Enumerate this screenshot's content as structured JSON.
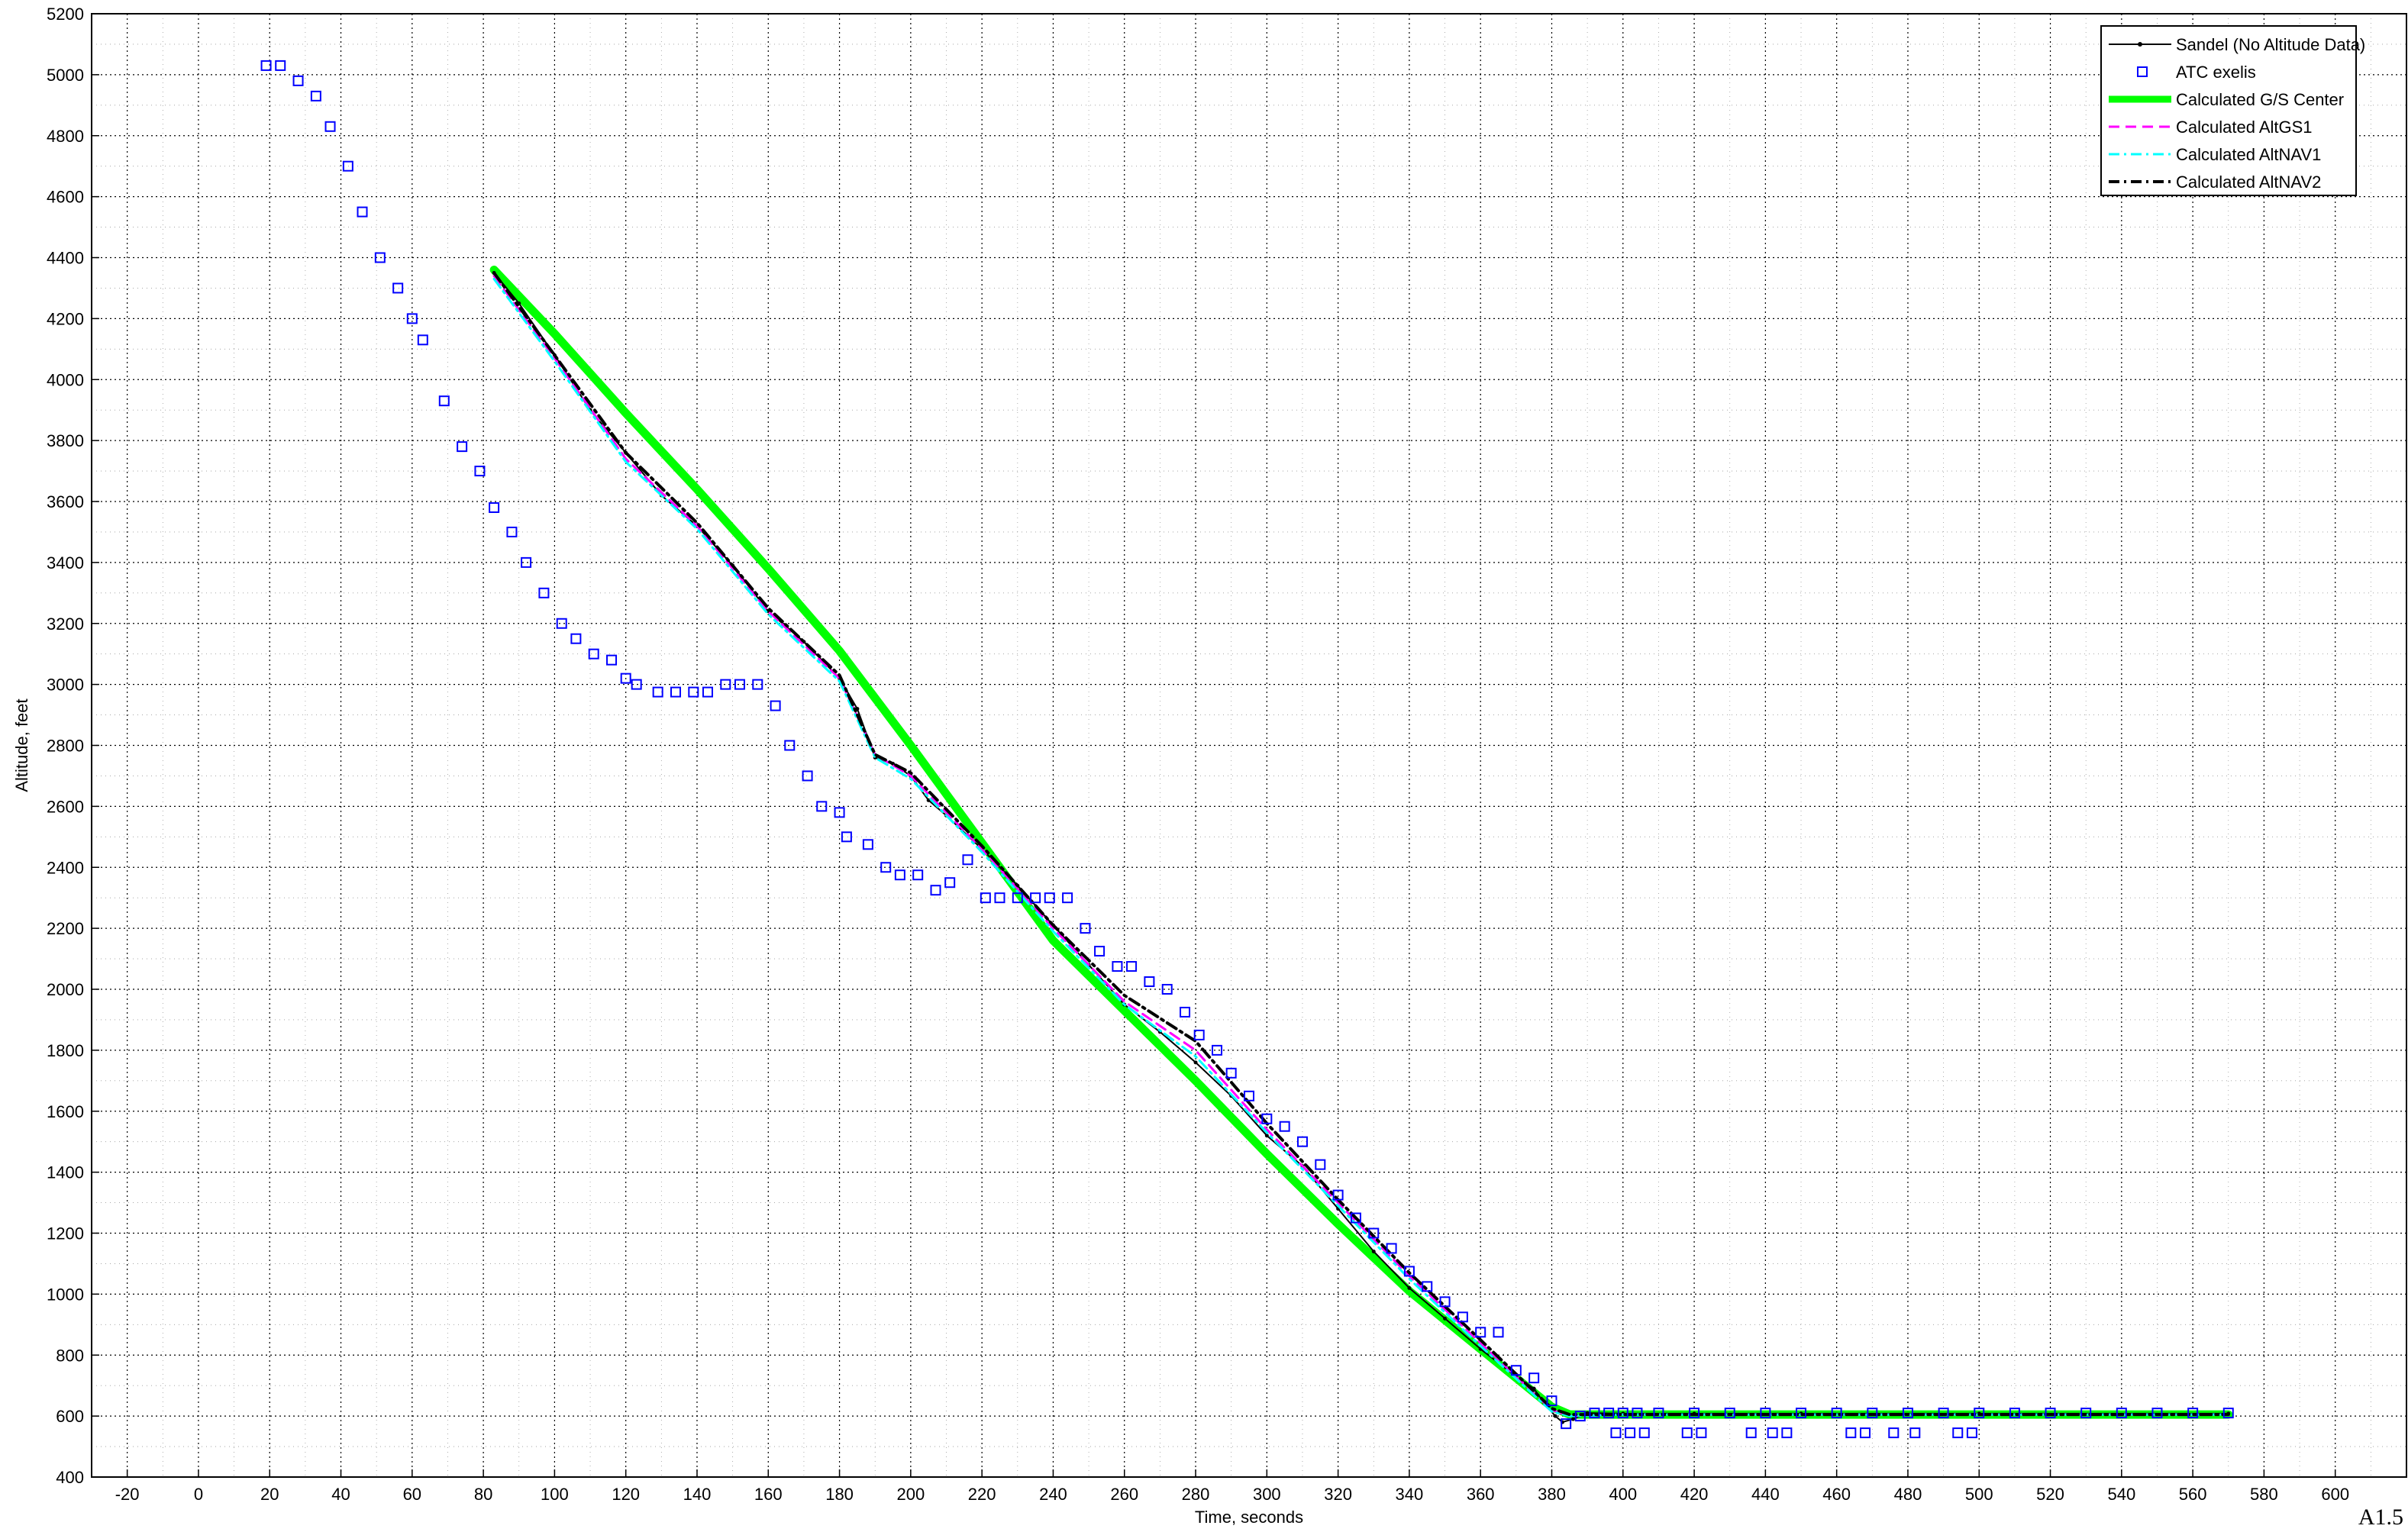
{
  "chart_data": {
    "type": "line",
    "title": "",
    "xlabel": "Time, seconds",
    "ylabel": "Altitude, feet",
    "xlim": [
      -30,
      620
    ],
    "ylim": [
      400,
      5200
    ],
    "xticks": [
      -20,
      0,
      20,
      40,
      60,
      80,
      100,
      120,
      140,
      160,
      180,
      200,
      220,
      240,
      260,
      280,
      300,
      320,
      340,
      360,
      380,
      400,
      420,
      440,
      460,
      480,
      500,
      520,
      540,
      560,
      580,
      600
    ],
    "yticks": [
      400,
      600,
      800,
      1000,
      1200,
      1400,
      1600,
      1800,
      2000,
      2200,
      2400,
      2600,
      2800,
      3000,
      3200,
      3400,
      3600,
      3800,
      4000,
      4200,
      4400,
      4600,
      4800,
      5000,
      5200
    ],
    "grid": true,
    "legend_position": "top-right",
    "series": [
      {
        "name": "Sandel (No Altitude Data)",
        "style": "solid-thin-with-dots",
        "color": "#000000",
        "x": [
          83,
          90,
          100,
          110,
          120,
          130,
          140,
          150,
          160,
          170,
          180,
          185,
          190,
          195,
          200,
          205,
          210,
          220,
          230,
          240,
          250,
          260,
          270,
          280,
          290,
          300,
          310,
          320,
          330,
          340,
          350,
          360,
          370,
          375,
          378,
          381,
          383,
          386,
          390,
          400,
          420,
          450,
          500,
          570
        ],
        "y": [
          4350,
          4250,
          4080,
          3900,
          3760,
          3620,
          3520,
          3390,
          3240,
          3140,
          3020,
          2920,
          2760,
          2740,
          2700,
          2620,
          2570,
          2460,
          2340,
          2210,
          2080,
          1950,
          1860,
          1760,
          1650,
          1520,
          1420,
          1280,
          1140,
          1020,
          920,
          820,
          730,
          690,
          640,
          600,
          580,
          590,
          610,
          608,
          608,
          608,
          608,
          608
        ]
      },
      {
        "name": "ATC exelis",
        "style": "markers-square",
        "color": "#0000ff",
        "x": [
          19,
          23,
          28,
          33,
          37,
          42,
          46,
          51,
          56,
          60,
          63,
          69,
          74,
          79,
          83,
          88,
          92,
          97,
          102,
          106,
          111,
          116,
          120,
          123,
          129,
          134,
          139,
          143,
          148,
          152,
          157,
          162,
          166,
          171,
          175,
          180,
          182,
          188,
          193,
          197,
          202,
          207,
          211,
          216,
          221,
          225,
          230,
          235,
          239,
          244,
          249,
          253,
          258,
          262,
          267,
          272,
          277,
          281,
          286,
          290,
          295,
          300,
          305,
          310,
          315,
          320,
          325,
          330,
          335,
          340,
          345,
          350,
          355,
          360,
          365,
          370,
          375,
          380,
          384,
          388,
          392,
          396,
          400,
          404,
          410,
          420,
          430,
          440,
          450,
          460,
          470,
          480,
          490,
          500,
          510,
          520,
          530,
          540,
          550,
          560,
          570,
          398,
          402,
          406,
          418,
          422,
          436,
          442,
          446,
          464,
          468,
          476,
          482,
          494,
          498
        ],
        "y": [
          5030,
          5030,
          4980,
          4930,
          4830,
          4700,
          4550,
          4400,
          4300,
          4200,
          4130,
          3930,
          3780,
          3700,
          3580,
          3500,
          3400,
          3300,
          3200,
          3150,
          3100,
          3080,
          3020,
          3000,
          2975,
          2975,
          2975,
          2975,
          3000,
          3000,
          3000,
          2930,
          2800,
          2700,
          2600,
          2580,
          2500,
          2475,
          2400,
          2375,
          2375,
          2325,
          2350,
          2425,
          2300,
          2300,
          2300,
          2300,
          2300,
          2300,
          2200,
          2125,
          2075,
          2075,
          2025,
          2000,
          1925,
          1850,
          1800,
          1725,
          1650,
          1575,
          1550,
          1500,
          1425,
          1325,
          1250,
          1200,
          1150,
          1075,
          1025,
          975,
          925,
          875,
          875,
          750,
          725,
          650,
          575,
          600,
          610,
          610,
          610,
          610,
          610,
          610,
          610,
          610,
          610,
          610,
          610,
          610,
          610,
          610,
          610,
          610,
          610,
          610,
          610,
          610,
          610,
          545,
          545,
          545,
          545,
          545,
          545,
          545,
          545,
          545,
          545,
          545,
          545,
          545,
          545
        ]
      },
      {
        "name": "Calculated G/S Center",
        "style": "solid-thick",
        "color": "#00ff00",
        "x": [
          83,
          100,
          120,
          140,
          160,
          180,
          200,
          220,
          240,
          260,
          280,
          300,
          320,
          340,
          360,
          380,
          385,
          400,
          450,
          500,
          570
        ],
        "y": [
          4360,
          4150,
          3890,
          3640,
          3380,
          3110,
          2800,
          2480,
          2160,
          1930,
          1700,
          1460,
          1230,
          1010,
          820,
          630,
          605,
          605,
          605,
          605,
          605
        ]
      },
      {
        "name": "Calculated AltGS1",
        "style": "dashed",
        "color": "#ff00ff",
        "x": [
          83,
          100,
          120,
          140,
          160,
          180,
          190,
          200,
          220,
          240,
          260,
          280,
          300,
          320,
          340,
          360,
          380,
          385,
          400,
          450,
          500,
          570
        ],
        "y": [
          4340,
          4070,
          3740,
          3520,
          3240,
          3020,
          2770,
          2700,
          2460,
          2200,
          1960,
          1800,
          1540,
          1300,
          1060,
          840,
          620,
          600,
          605,
          605,
          605,
          605
        ]
      },
      {
        "name": "Calculated AltNAV1",
        "style": "dash-dot",
        "color": "#00ffff",
        "x": [
          83,
          100,
          120,
          140,
          160,
          180,
          190,
          200,
          220,
          240,
          260,
          280,
          300,
          320,
          340,
          360,
          380,
          385,
          400,
          450,
          500,
          570
        ],
        "y": [
          4330,
          4060,
          3730,
          3510,
          3230,
          3010,
          2760,
          2690,
          2450,
          2190,
          1950,
          1780,
          1530,
          1290,
          1050,
          830,
          615,
          600,
          605,
          605,
          605,
          605
        ]
      },
      {
        "name": "Calculated AltNAV2",
        "style": "dash-dot-thick",
        "color": "#000000",
        "x": [
          83,
          100,
          120,
          140,
          160,
          180,
          190,
          200,
          220,
          240,
          260,
          280,
          300,
          320,
          340,
          360,
          380,
          385,
          400,
          450,
          500,
          570
        ],
        "y": [
          4350,
          4080,
          3760,
          3530,
          3250,
          3030,
          2770,
          2710,
          2470,
          2210,
          1980,
          1830,
          1560,
          1310,
          1070,
          850,
          625,
          605,
          605,
          605,
          605,
          605
        ]
      }
    ]
  },
  "page_label": "A1.5"
}
